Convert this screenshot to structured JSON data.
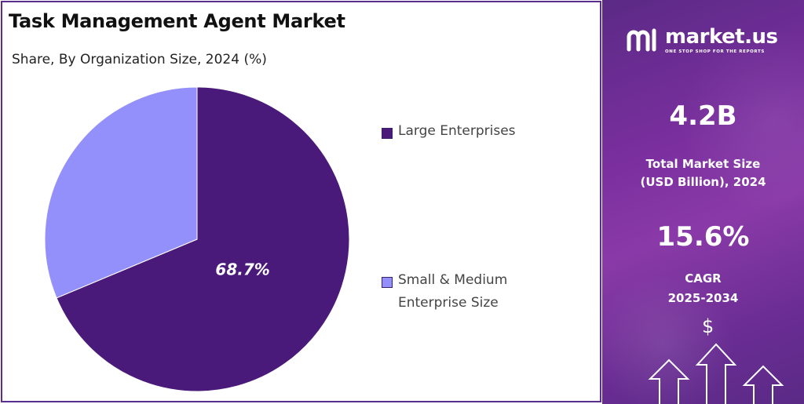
{
  "title": "Task Management Agent Market",
  "subtitle": "Share, By Organization Size, 2024 (%)",
  "chart_data": {
    "type": "pie",
    "title": "Task Management Agent Market",
    "subtitle": "Share, By Organization Size, 2024 (%)",
    "categories": [
      "Large Enterprises",
      "Small & Medium Enterprise Size"
    ],
    "values": [
      68.7,
      31.3
    ],
    "colors": [
      "#4a1a7a",
      "#9390fb"
    ],
    "data_labels": [
      "68.7%",
      ""
    ],
    "legend_position": "right"
  },
  "legend": {
    "items": [
      {
        "label": "Large Enterprises",
        "color": "#4a1a7a"
      },
      {
        "label": "Small & Medium Enterprise Size",
        "color": "#9390fb"
      }
    ]
  },
  "info": {
    "logo_name": "market.us",
    "logo_tagline": "ONE STOP SHOP FOR THE REPORTS",
    "market_size_value": "4.2B",
    "market_size_label_line1": "Total Market Size",
    "market_size_label_line2": "(USD Billion), 2024",
    "cagr_value": "15.6%",
    "cagr_label_line1": "CAGR",
    "cagr_label_line2": "2025-2034",
    "dollar_symbol": "$",
    "logo_icon": "market-us-logo-icon",
    "decor_icon": "growth-arrows-icon"
  }
}
